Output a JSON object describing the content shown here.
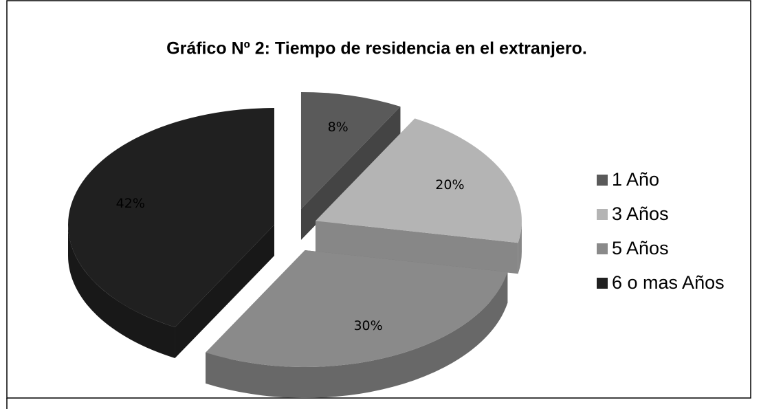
{
  "chart_data": {
    "type": "pie",
    "title": "Gráfico Nº 2: Tiempo de residencia en el extranjero.",
    "categories": [
      "1 Año",
      "3 Años",
      "5 Años",
      "6 o mas Años"
    ],
    "values": [
      8,
      20,
      30,
      42
    ],
    "value_labels": [
      "8%",
      "20%",
      "30%",
      "42%"
    ],
    "colors": [
      "#5a5a5a",
      "#b4b4b4",
      "#8a8a8a",
      "#202020"
    ],
    "legend": "right"
  }
}
